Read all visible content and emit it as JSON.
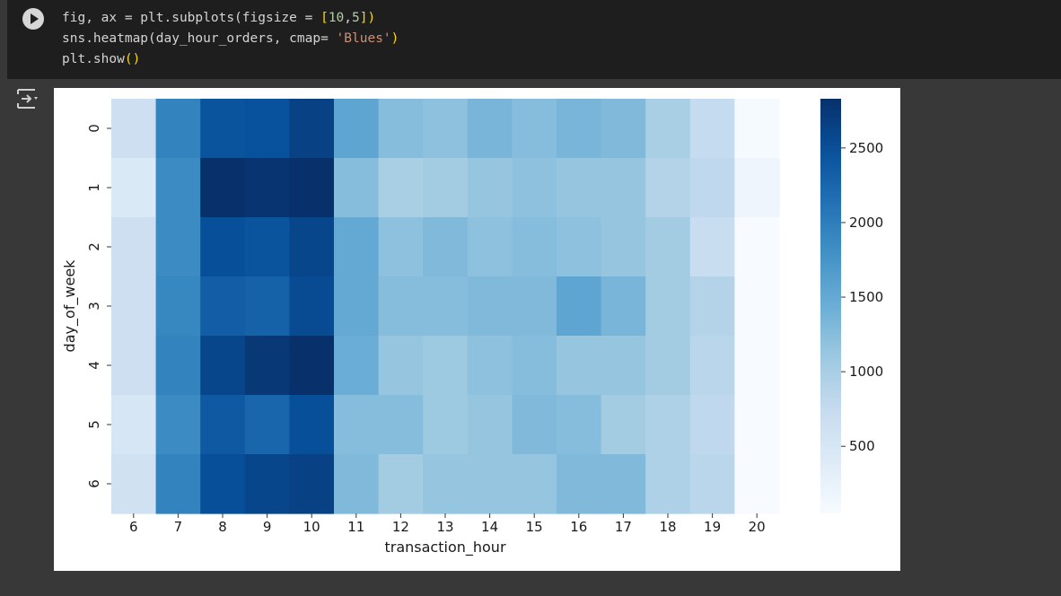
{
  "code": {
    "line1": {
      "a": "fig, ax = plt.subplots(figsize = ",
      "b": "[",
      "c": "10",
      "d": ",",
      "e": "5",
      "f": "]",
      "g": ")"
    },
    "line2": {
      "a": "sns.heatmap(day_hour_orders, cmap= ",
      "b": "'Blues'",
      "c": ")"
    },
    "line3": {
      "a": "plt.show",
      "b": "()"
    }
  },
  "chart_data": {
    "type": "heatmap",
    "title": "",
    "xlabel": "transaction_hour",
    "ylabel": "day_of_week",
    "x": [
      "6",
      "7",
      "8",
      "9",
      "10",
      "11",
      "12",
      "13",
      "14",
      "15",
      "16",
      "17",
      "18",
      "19",
      "20"
    ],
    "y": [
      "0",
      "1",
      "2",
      "3",
      "4",
      "5",
      "6"
    ],
    "values": [
      [
        650,
        1950,
        2450,
        2480,
        2650,
        1550,
        1250,
        1200,
        1350,
        1250,
        1350,
        1300,
        1000,
        750,
        80
      ],
      [
        450,
        1850,
        2820,
        2780,
        2850,
        1250,
        1000,
        1050,
        1150,
        1200,
        1150,
        1150,
        900,
        800,
        180
      ],
      [
        650,
        1850,
        2500,
        2450,
        2600,
        1500,
        1200,
        1300,
        1200,
        1250,
        1200,
        1150,
        1050,
        700,
        50
      ],
      [
        650,
        1900,
        2350,
        2300,
        2550,
        1500,
        1250,
        1250,
        1300,
        1300,
        1550,
        1350,
        1050,
        900,
        30
      ],
      [
        650,
        1950,
        2600,
        2750,
        2820,
        1450,
        1150,
        1100,
        1200,
        1250,
        1150,
        1150,
        1050,
        850,
        40
      ],
      [
        500,
        1850,
        2400,
        2250,
        2500,
        1250,
        1250,
        1100,
        1150,
        1300,
        1250,
        1050,
        950,
        800,
        30
      ],
      [
        600,
        1950,
        2500,
        2600,
        2650,
        1300,
        1050,
        1150,
        1150,
        1150,
        1300,
        1300,
        950,
        850,
        30
      ]
    ],
    "zlim": [
      50,
      2830
    ],
    "colorbar_ticks": [
      500,
      1000,
      1500,
      2000,
      2500
    ],
    "cmap": "Blues"
  }
}
